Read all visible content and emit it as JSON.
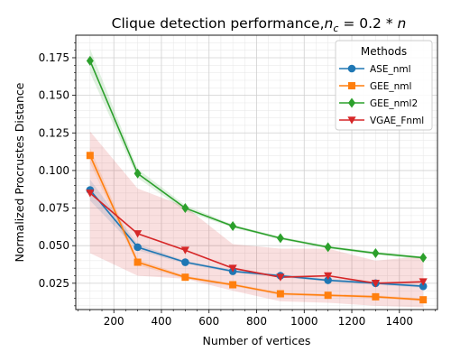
{
  "chart_data": {
    "type": "line",
    "title": "Clique detection performance,",
    "title_math": {
      "n": "n",
      "sub": "c",
      "rhs": " = 0.2 * ",
      "var": "n"
    },
    "xlabel": "Number of vertices",
    "ylabel": "Normalized Procrustes Distance",
    "xlim": [
      40,
      1560
    ],
    "ylim": [
      0.0075,
      0.19
    ],
    "x_ticks": [
      200,
      400,
      600,
      800,
      1000,
      1200,
      1400
    ],
    "x_tick_labels": [
      "200",
      "400",
      "600",
      "800",
      "1000",
      "1200",
      "1400"
    ],
    "y_ticks": [
      0.025,
      0.05,
      0.075,
      0.1,
      0.125,
      0.15,
      0.175
    ],
    "y_tick_labels": [
      "0.025",
      "0.050",
      "0.075",
      "0.100",
      "0.125",
      "0.150",
      "0.175"
    ],
    "grid": true,
    "legend_title": "Methods",
    "legend_position": "top-right",
    "x": [
      100,
      300,
      500,
      700,
      900,
      1100,
      1300,
      1500
    ],
    "series": [
      {
        "name": "ASE_nml",
        "color": "#1f77b4",
        "marker": "circle",
        "values": [
          0.087,
          0.049,
          0.039,
          0.033,
          0.03,
          0.027,
          0.025,
          0.023
        ],
        "band_low": [
          0.08,
          0.047,
          0.038,
          0.032,
          0.029,
          0.026,
          0.024,
          0.022
        ],
        "band_high": [
          0.094,
          0.051,
          0.04,
          0.034,
          0.031,
          0.028,
          0.026,
          0.024
        ]
      },
      {
        "name": "GEE_nml",
        "color": "#ff7f0e",
        "marker": "square",
        "values": [
          0.11,
          0.039,
          0.029,
          0.024,
          0.018,
          0.017,
          0.016,
          0.014
        ],
        "band_low": [
          0.105,
          0.037,
          0.028,
          0.023,
          0.017,
          0.016,
          0.015,
          0.013
        ],
        "band_high": [
          0.115,
          0.041,
          0.03,
          0.025,
          0.019,
          0.018,
          0.017,
          0.015
        ]
      },
      {
        "name": "GEE_nml2",
        "color": "#2ca02c",
        "marker": "diamond",
        "values": [
          0.173,
          0.098,
          0.075,
          0.063,
          0.055,
          0.049,
          0.045,
          0.042
        ],
        "band_low": [
          0.165,
          0.095,
          0.073,
          0.062,
          0.054,
          0.048,
          0.044,
          0.041
        ],
        "band_high": [
          0.181,
          0.101,
          0.077,
          0.064,
          0.056,
          0.05,
          0.046,
          0.043
        ]
      },
      {
        "name": "VGAE_Fnml",
        "color": "#d62728",
        "marker": "triangle-down",
        "values": [
          0.085,
          0.058,
          0.047,
          0.035,
          0.029,
          0.03,
          0.025,
          0.026
        ],
        "band_low": [
          0.045,
          0.03,
          0.028,
          0.02,
          0.013,
          0.012,
          0.01,
          0.009
        ],
        "band_high": [
          0.126,
          0.088,
          0.076,
          0.051,
          0.048,
          0.048,
          0.04,
          0.043
        ]
      }
    ]
  }
}
